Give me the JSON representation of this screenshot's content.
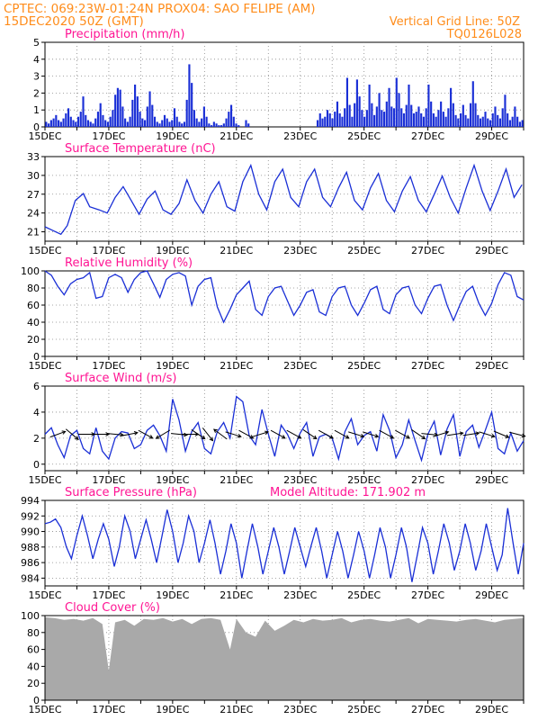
{
  "header": {
    "line1": "CPTEC:   069:23W-01:24N   PROX04: SAO FELIPE (AM)",
    "line2_left": "15DEC2020 50Z (GMT)",
    "line2_right": "Vertical Grid Line: 50Z",
    "line3_right": "TQ0126L028",
    "color": "#ff8c1a"
  },
  "colors": {
    "title": "#ff1493",
    "line": "#1a2fd6",
    "bar": "#1a2fd6",
    "cloud": "#a9a9a9",
    "grid": "#888888"
  },
  "x_tick_labels": [
    "15DEC",
    "17DEC",
    "19DEC",
    "21DEC",
    "23DEC",
    "25DEC",
    "27DEC",
    "29DEC"
  ],
  "chart_data": [
    {
      "type": "bar",
      "title": "Precipitation (mm/h)",
      "ylim": [
        0,
        5
      ],
      "yticks": [
        "0",
        "1",
        "2",
        "3",
        "4",
        "5"
      ],
      "x_start_day": 15,
      "x_end_day": 30,
      "values": [
        0.3,
        0.2,
        0.4,
        0.5,
        0.7,
        0.4,
        0.3,
        0.5,
        0.8,
        1.1,
        0.6,
        0.4,
        0.3,
        0.6,
        0.9,
        1.8,
        0.7,
        0.4,
        0.3,
        0.2,
        0.5,
        0.9,
        1.4,
        0.7,
        0.4,
        0.3,
        0.6,
        1.0,
        1.9,
        2.3,
        2.2,
        1.2,
        0.5,
        0.3,
        0.6,
        1.6,
        2.5,
        1.8,
        0.9,
        0.5,
        0.4,
        1.2,
        2.1,
        1.3,
        0.6,
        0.3,
        0.2,
        0.4,
        0.7,
        0.5,
        0.3,
        0.4,
        1.1,
        0.6,
        0.3,
        0.2,
        0.3,
        1.6,
        3.7,
        2.6,
        1.0,
        0.5,
        0.3,
        0.5,
        1.2,
        0.6,
        0.2,
        0.1,
        0.3,
        0.2,
        0.1,
        0.1,
        0.2,
        0.5,
        0.9,
        1.3,
        0.6,
        0.2,
        0.1,
        0.0,
        0.0,
        0.4,
        0.2,
        0.0,
        0.0,
        0.0,
        0.0,
        0.0,
        0.0,
        0.0,
        0.0,
        0.0,
        0.0,
        0.0,
        0.0,
        0.0,
        0.0,
        0.0,
        0.0,
        0.0,
        0.0,
        0.0,
        0.0,
        0.0,
        0.0,
        0.0,
        0.0,
        0.0,
        0.0,
        0.0,
        0.4,
        0.8,
        0.5,
        0.6,
        1.0,
        0.8,
        0.5,
        0.9,
        1.5,
        0.8,
        0.6,
        1.1,
        2.9,
        1.3,
        0.6,
        1.4,
        2.8,
        1.8,
        1.0,
        0.6,
        1.0,
        2.5,
        1.4,
        0.7,
        1.2,
        2.0,
        1.0,
        0.9,
        1.5,
        2.3,
        1.2,
        1.1,
        2.9,
        2.0,
        1.1,
        0.8,
        1.3,
        2.5,
        1.3,
        0.8,
        0.9,
        1.2,
        0.8,
        0.6,
        1.1,
        2.5,
        1.5,
        0.8,
        0.6,
        1.0,
        1.5,
        0.9,
        0.6,
        1.1,
        2.3,
        1.4,
        0.7,
        0.5,
        0.8,
        1.3,
        0.7,
        0.5,
        1.4,
        2.7,
        1.4,
        0.7,
        0.5,
        0.6,
        0.9,
        0.5,
        0.4,
        0.8,
        1.2,
        0.7,
        0.5,
        1.1,
        1.9,
        0.8,
        0.4,
        0.6,
        1.2,
        0.6,
        0.3,
        0.4
      ]
    },
    {
      "type": "line",
      "title": "Surface Temperature (nC)",
      "ylim": [
        19.5,
        33
      ],
      "yticks": [
        "21",
        "24",
        "27",
        "30",
        "33"
      ],
      "x_start_day": 15,
      "x_end_day": 30,
      "x": [
        15.0,
        15.25,
        15.5,
        15.7,
        15.95,
        16.2,
        16.4,
        16.7,
        16.95,
        17.2,
        17.45,
        17.7,
        17.95,
        18.2,
        18.45,
        18.7,
        18.95,
        19.2,
        19.45,
        19.7,
        19.95,
        20.2,
        20.45,
        20.7,
        20.95,
        21.2,
        21.45,
        21.7,
        21.95,
        22.2,
        22.45,
        22.7,
        22.95,
        23.2,
        23.45,
        23.7,
        23.95,
        24.2,
        24.45,
        24.7,
        24.95,
        25.2,
        25.45,
        25.7,
        25.95,
        26.2,
        26.45,
        26.7,
        26.95,
        27.2,
        27.45,
        27.7,
        27.95,
        28.2,
        28.45,
        28.7,
        28.95,
        29.2,
        29.45,
        29.7,
        29.95
      ],
      "y": [
        21.8,
        21.2,
        20.6,
        22.0,
        26.0,
        27.1,
        25.0,
        24.5,
        24.0,
        26.5,
        28.2,
        26.0,
        23.8,
        26.2,
        27.5,
        24.5,
        23.8,
        25.5,
        29.3,
        26.0,
        24.0,
        27.0,
        29.0,
        25.0,
        24.3,
        29.0,
        31.6,
        27.0,
        24.5,
        29.0,
        31.0,
        26.5,
        25.0,
        29.0,
        31.0,
        26.5,
        25.0,
        28.0,
        30.5,
        26.0,
        24.5,
        28.0,
        30.3,
        26.0,
        24.2,
        27.5,
        29.8,
        26.0,
        24.2,
        27.0,
        29.9,
        26.5,
        24.0,
        28.0,
        31.6,
        27.5,
        24.4,
        27.5,
        31.0,
        26.5,
        28.5
      ]
    },
    {
      "type": "line",
      "title": "Relative Humidity (%)",
      "ylim": [
        0,
        100
      ],
      "yticks": [
        "0",
        "20",
        "40",
        "60",
        "80",
        "100"
      ],
      "x_start_day": 15,
      "x_end_day": 30,
      "x": [
        15.0,
        15.2,
        15.4,
        15.6,
        15.8,
        16.0,
        16.2,
        16.4,
        16.6,
        16.8,
        17.0,
        17.2,
        17.4,
        17.6,
        17.8,
        18.0,
        18.2,
        18.4,
        18.6,
        18.8,
        19.0,
        19.2,
        19.4,
        19.6,
        19.8,
        20.0,
        20.2,
        20.4,
        20.6,
        20.8,
        21.0,
        21.2,
        21.4,
        21.6,
        21.8,
        22.0,
        22.2,
        22.4,
        22.6,
        22.8,
        23.0,
        23.2,
        23.4,
        23.6,
        23.8,
        24.0,
        24.2,
        24.4,
        24.6,
        24.8,
        25.0,
        25.2,
        25.4,
        25.6,
        25.8,
        26.0,
        26.2,
        26.4,
        26.6,
        26.8,
        27.0,
        27.2,
        27.4,
        27.6,
        27.8,
        28.0,
        28.2,
        28.4,
        28.6,
        28.8,
        29.0,
        29.2,
        29.4,
        29.6,
        29.8,
        30.0
      ],
      "y": [
        100,
        95,
        82,
        72,
        85,
        90,
        92,
        98,
        68,
        70,
        92,
        96,
        92,
        75,
        90,
        98,
        100,
        85,
        69,
        90,
        96,
        98,
        94,
        60,
        82,
        90,
        92,
        58,
        40,
        55,
        72,
        80,
        88,
        55,
        48,
        70,
        80,
        82,
        65,
        48,
        60,
        75,
        78,
        52,
        48,
        70,
        80,
        82,
        60,
        48,
        62,
        78,
        82,
        55,
        50,
        72,
        80,
        82,
        60,
        50,
        68,
        82,
        84,
        60,
        42,
        60,
        76,
        82,
        62,
        48,
        62,
        84,
        98,
        95,
        70,
        66
      ]
    },
    {
      "type": "line",
      "title": "Surface Wind (m/s)",
      "ylim": [
        -0.5,
        6
      ],
      "yticks": [
        "0",
        "2",
        "4",
        "6"
      ],
      "x_start_day": 15,
      "x_end_day": 30,
      "x": [
        15.0,
        15.2,
        15.4,
        15.6,
        15.8,
        16.0,
        16.2,
        16.4,
        16.6,
        16.8,
        17.0,
        17.2,
        17.4,
        17.6,
        17.8,
        18.0,
        18.2,
        18.4,
        18.6,
        18.8,
        19.0,
        19.2,
        19.4,
        19.6,
        19.8,
        20.0,
        20.2,
        20.4,
        20.6,
        20.8,
        21.0,
        21.2,
        21.4,
        21.6,
        21.8,
        22.0,
        22.2,
        22.4,
        22.6,
        22.8,
        23.0,
        23.2,
        23.4,
        23.6,
        23.8,
        24.0,
        24.2,
        24.4,
        24.6,
        24.8,
        25.0,
        25.2,
        25.4,
        25.6,
        25.8,
        26.0,
        26.2,
        26.4,
        26.6,
        26.8,
        27.0,
        27.2,
        27.4,
        27.6,
        27.8,
        28.0,
        28.2,
        28.4,
        28.6,
        28.8,
        29.0,
        29.2,
        29.4,
        29.6,
        29.8,
        30.0
      ],
      "y": [
        2.3,
        2.8,
        1.5,
        0.5,
        2.2,
        2.6,
        1.2,
        0.8,
        2.8,
        1.0,
        0.4,
        2.0,
        2.5,
        2.4,
        1.2,
        1.5,
        2.6,
        3.0,
        2.2,
        1.0,
        5.0,
        3.4,
        1.0,
        2.5,
        3.2,
        1.2,
        0.8,
        2.5,
        3.2,
        2.0,
        5.2,
        4.8,
        2.2,
        1.5,
        4.2,
        2.3,
        0.6,
        3.0,
        2.3,
        1.2,
        2.4,
        3.2,
        0.6,
        2.1,
        2.3,
        2.0,
        0.4,
        2.5,
        3.5,
        1.5,
        2.2,
        2.5,
        1.0,
        3.8,
        2.6,
        0.5,
        1.5,
        3.4,
        1.8,
        0.3,
        2.3,
        3.3,
        0.7,
        2.7,
        3.8,
        0.6,
        2.5,
        3.0,
        1.3,
        2.6,
        4.0,
        1.2,
        0.8,
        2.4,
        1.0,
        1.8
      ],
      "arrows": [
        [
          15.4,
          0.35
        ],
        [
          15.85,
          -0.7
        ],
        [
          16.3,
          0.0
        ],
        [
          16.75,
          0.0
        ],
        [
          17.2,
          -0.1
        ],
        [
          17.65,
          0.2
        ],
        [
          18.15,
          -0.5
        ],
        [
          18.7,
          -2.6
        ],
        [
          19.2,
          -0.1
        ],
        [
          19.55,
          0.0
        ],
        [
          19.8,
          -0.6
        ],
        [
          20.1,
          -0.9
        ],
        [
          20.5,
          2.5
        ],
        [
          20.9,
          -0.3
        ],
        [
          21.3,
          -0.5
        ],
        [
          21.75,
          0.3
        ],
        [
          22.3,
          -0.5
        ],
        [
          22.8,
          -0.5
        ],
        [
          23.3,
          -0.6
        ],
        [
          23.8,
          -0.5
        ],
        [
          24.3,
          -0.5
        ],
        [
          24.75,
          -0.3
        ],
        [
          25.2,
          -0.3
        ],
        [
          25.7,
          -0.5
        ],
        [
          26.2,
          -0.5
        ],
        [
          26.7,
          -0.6
        ],
        [
          27.05,
          -0.1
        ],
        [
          27.4,
          0.3
        ],
        [
          27.85,
          0.15
        ],
        [
          28.35,
          0.15
        ],
        [
          28.85,
          -0.3
        ],
        [
          29.3,
          -0.4
        ],
        [
          29.8,
          -0.25
        ]
      ]
    },
    {
      "type": "line",
      "title": "Surface Pressure (hPa)",
      "annotation": "Model Altitude: 171.902 m",
      "ylim": [
        983,
        994
      ],
      "yticks": [
        "984",
        "986",
        "988",
        "990",
        "992",
        "994"
      ],
      "x_start_day": 15,
      "x_end_day": 30,
      "x": [
        15.0,
        15.17,
        15.33,
        15.5,
        15.67,
        15.83,
        16.0,
        16.17,
        16.33,
        16.5,
        16.67,
        16.83,
        17.0,
        17.17,
        17.33,
        17.5,
        17.67,
        17.83,
        18.0,
        18.17,
        18.33,
        18.5,
        18.67,
        18.83,
        19.0,
        19.17,
        19.33,
        19.5,
        19.67,
        19.83,
        20.0,
        20.17,
        20.33,
        20.5,
        20.67,
        20.83,
        21.0,
        21.17,
        21.33,
        21.5,
        21.67,
        21.83,
        22.0,
        22.17,
        22.33,
        22.5,
        22.67,
        22.83,
        23.0,
        23.17,
        23.33,
        23.5,
        23.67,
        23.83,
        24.0,
        24.17,
        24.33,
        24.5,
        24.67,
        24.83,
        25.0,
        25.17,
        25.33,
        25.5,
        25.67,
        25.83,
        26.0,
        26.17,
        26.33,
        26.5,
        26.67,
        26.83,
        27.0,
        27.17,
        27.33,
        27.5,
        27.67,
        27.83,
        28.0,
        28.17,
        28.33,
        28.5,
        28.67,
        28.83,
        29.0,
        29.17,
        29.33,
        29.5,
        29.67,
        29.83,
        30.0
      ],
      "y": [
        991.0,
        991.2,
        991.6,
        990.5,
        988.0,
        986.5,
        989.5,
        992.0,
        989.5,
        986.5,
        989.0,
        991.0,
        989.0,
        985.5,
        988.0,
        992.0,
        990.0,
        986.5,
        989.0,
        991.5,
        989.0,
        986.0,
        989.5,
        992.8,
        990.0,
        986.0,
        988.5,
        992.0,
        990.0,
        986.0,
        988.5,
        991.5,
        988.5,
        984.5,
        987.5,
        991.0,
        988.5,
        984.0,
        987.5,
        991.0,
        988.0,
        984.5,
        987.5,
        990.5,
        988.0,
        984.5,
        987.5,
        990.5,
        988.0,
        985.5,
        988.0,
        990.5,
        987.5,
        984.0,
        987.0,
        990.0,
        987.5,
        984.0,
        987.0,
        990.0,
        987.5,
        984.0,
        987.0,
        990.5,
        988.0,
        984.0,
        987.0,
        990.5,
        988.0,
        983.5,
        987.0,
        990.5,
        988.5,
        984.5,
        987.5,
        991.0,
        988.5,
        985.0,
        987.5,
        991.0,
        988.5,
        985.0,
        987.5,
        991.0,
        988.0,
        985.0,
        987.0,
        993.0,
        988.5,
        984.5,
        988.5
      ]
    },
    {
      "type": "area",
      "title": "Cloud Cover (%)",
      "ylim": [
        0,
        100
      ],
      "yticks": [
        "0",
        "20",
        "40",
        "60",
        "80",
        "100"
      ],
      "x_start_day": 15,
      "x_end_day": 30,
      "x": [
        15.0,
        15.3,
        15.6,
        15.9,
        16.2,
        16.5,
        16.8,
        17.0,
        17.2,
        17.5,
        17.8,
        18.1,
        18.4,
        18.7,
        19.0,
        19.3,
        19.6,
        19.9,
        20.2,
        20.5,
        20.8,
        21.0,
        21.3,
        21.6,
        21.9,
        22.2,
        22.5,
        22.8,
        23.1,
        23.4,
        23.7,
        24.0,
        24.3,
        24.6,
        24.9,
        25.2,
        25.5,
        25.8,
        26.1,
        26.4,
        26.7,
        27.0,
        27.3,
        27.6,
        27.9,
        28.2,
        28.5,
        28.8,
        29.1,
        29.4,
        29.7,
        30.0
      ],
      "y": [
        98,
        97,
        95,
        96,
        94,
        97,
        90,
        35,
        92,
        95,
        88,
        96,
        95,
        97,
        93,
        96,
        90,
        96,
        97,
        95,
        60,
        96,
        80,
        75,
        94,
        82,
        88,
        95,
        92,
        96,
        94,
        95,
        97,
        92,
        95,
        96,
        94,
        93,
        95,
        97,
        91,
        96,
        95,
        94,
        93,
        95,
        96,
        94,
        92,
        95,
        96,
        97
      ]
    }
  ]
}
